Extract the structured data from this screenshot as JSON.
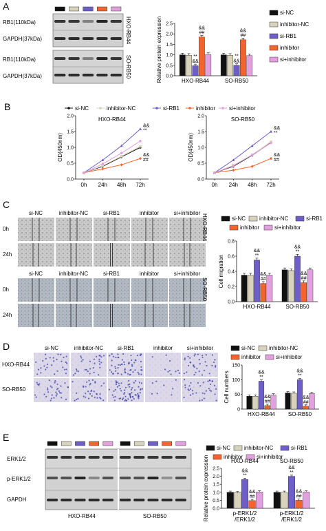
{
  "colors": {
    "si-NC": "#111111",
    "inhibitor-NC": "#d8d3bb",
    "si-RB1": "#6e5fc8",
    "inhibitor": "#f2642e",
    "si+inhibitor": "#e3a0de"
  },
  "groups": [
    "si-NC",
    "inhibitor-NC",
    "si-RB1",
    "inhibitor",
    "si+inhibitor"
  ],
  "cell_lines": [
    "HXO-RB44",
    "SO-RB50"
  ],
  "panelA": {
    "letter": "A",
    "blots_top": {
      "cell": "HXO-RB44",
      "rows": [
        "RB1(110kDa)",
        "GAPDH(37kDa)"
      ]
    },
    "blots_bottom": {
      "cell": "SO-RB50",
      "rows": [
        "RB1(110kDa)",
        "GAPDH(37kDa)"
      ]
    }
  },
  "panelB": {
    "letter": "B"
  },
  "panelC": {
    "letter": "C",
    "timepoints": [
      "0h",
      "24h"
    ],
    "block_labels": [
      "HXO-RB44",
      "SO-RB50"
    ]
  },
  "panelD": {
    "letter": "D",
    "rows": [
      "HXO-RB44",
      "SO-RB50"
    ]
  },
  "panelE": {
    "letter": "E",
    "rows": [
      "ERK1/2",
      "p-ERK1/2",
      "GAPDH"
    ],
    "cells": [
      "HXO-RB44",
      "SO-RB50"
    ]
  },
  "legend_text": {
    "si_nc": "si-NC",
    "inhibitor_nc": "inhibitor-NC",
    "si_rb1": "si-RB1",
    "inhibitor": "inhibitor",
    "si_inhibitor": "si+inhibitor"
  },
  "chart_data": [
    {
      "id": "A-bar",
      "type": "bar",
      "ylabel": "Relative protein expression",
      "ylim": [
        0,
        2.5
      ],
      "yticks": [
        "0.0",
        "0.5",
        "1.0",
        "1.5",
        "2.0",
        "2.5"
      ],
      "categories": [
        "HXO-RB44",
        "SO-RB50"
      ],
      "series": [
        {
          "name": "si-NC",
          "values": [
            1.0,
            1.0
          ]
        },
        {
          "name": "inhibitor-NC",
          "values": [
            0.98,
            0.98
          ]
        },
        {
          "name": "si-RB1",
          "values": [
            0.48,
            0.5
          ]
        },
        {
          "name": "inhibitor",
          "values": [
            1.85,
            1.72
          ]
        },
        {
          "name": "si+inhibitor",
          "values": [
            1.02,
            0.96
          ]
        }
      ],
      "annotations": {
        "si-RB1": "**&&",
        "inhibitor": "&&##"
      }
    },
    {
      "id": "B-HXO",
      "type": "line",
      "title": "HXO-RB44",
      "ylabel": "OD(450nm)",
      "ylim": [
        0,
        2.0
      ],
      "yticks": [
        "0.0",
        "0.5",
        "1.0",
        "1.5",
        "2.0"
      ],
      "x": [
        "0h",
        "24h",
        "48h",
        "72h"
      ],
      "series": [
        {
          "name": "si-NC",
          "values": [
            0.2,
            0.4,
            0.7,
            1.0
          ]
        },
        {
          "name": "inhibitor-NC",
          "values": [
            0.2,
            0.42,
            0.72,
            1.03
          ]
        },
        {
          "name": "si-RB1",
          "values": [
            0.2,
            0.6,
            1.05,
            1.58
          ]
        },
        {
          "name": "inhibitor",
          "values": [
            0.2,
            0.32,
            0.45,
            0.65
          ]
        },
        {
          "name": "si+inhibitor",
          "values": [
            0.2,
            0.48,
            0.82,
            1.2
          ]
        }
      ],
      "annotations": {
        "si-RB1": "&&**",
        "inhibitor": "&&##"
      }
    },
    {
      "id": "B-SO",
      "type": "line",
      "title": "SO-RB50",
      "ylabel": "OD(450nm)",
      "ylim": [
        0,
        2.0
      ],
      "yticks": [
        "0.0",
        "0.5",
        "1.0",
        "1.5",
        "2.0"
      ],
      "x": [
        "0h",
        "24h",
        "48h",
        "72h"
      ],
      "series": [
        {
          "name": "si-NC",
          "values": [
            0.2,
            0.4,
            0.75,
            1.15
          ]
        },
        {
          "name": "inhibitor-NC",
          "values": [
            0.2,
            0.42,
            0.77,
            1.18
          ]
        },
        {
          "name": "si-RB1",
          "values": [
            0.2,
            0.6,
            1.05,
            1.5
          ]
        },
        {
          "name": "inhibitor",
          "values": [
            0.2,
            0.28,
            0.4,
            0.65
          ]
        },
        {
          "name": "si+inhibitor",
          "values": [
            0.2,
            0.43,
            0.76,
            1.14
          ]
        }
      ],
      "annotations": {
        "si-RB1": "&&**",
        "inhibitor": "&&##"
      }
    },
    {
      "id": "C-bar",
      "type": "bar",
      "ylabel": "Cell migration",
      "ylim": [
        0,
        0.8
      ],
      "yticks": [
        "0.0",
        "0.2",
        "0.4",
        "0.6",
        "0.8"
      ],
      "categories": [
        "HXO-RB44",
        "SO-RB50"
      ],
      "series": [
        {
          "name": "si-NC",
          "values": [
            0.35,
            0.42
          ]
        },
        {
          "name": "inhibitor-NC",
          "values": [
            0.35,
            0.41
          ]
        },
        {
          "name": "si-RB1",
          "values": [
            0.55,
            0.6
          ]
        },
        {
          "name": "inhibitor",
          "values": [
            0.24,
            0.25
          ]
        },
        {
          "name": "si+inhibitor",
          "values": [
            0.35,
            0.42
          ]
        }
      ],
      "annotations": {
        "si-RB1": "&&**",
        "inhibitor": "&&##"
      }
    },
    {
      "id": "D-bar",
      "type": "bar",
      "ylabel": "Cell numbers",
      "ylim": [
        0,
        150
      ],
      "yticks": [
        "0",
        "50",
        "100",
        "150"
      ],
      "categories": [
        "HXO-RB44",
        "SO-RB50"
      ],
      "series": [
        {
          "name": "si-NC",
          "values": [
            44,
            55
          ]
        },
        {
          "name": "inhibitor-NC",
          "values": [
            44,
            54
          ]
        },
        {
          "name": "si-RB1",
          "values": [
            95,
            100
          ]
        },
        {
          "name": "inhibitor",
          "values": [
            12,
            10
          ]
        },
        {
          "name": "si+inhibitor",
          "values": [
            48,
            53
          ]
        }
      ],
      "annotations": {
        "si-RB1": "&&**",
        "inhibitor": "&&##"
      }
    },
    {
      "id": "E-bar",
      "type": "bar",
      "ylabel": "Relative protein expression",
      "ylim": [
        0,
        2.5
      ],
      "yticks": [
        "0.0",
        "0.5",
        "1.0",
        "1.5",
        "2.0",
        "2.5"
      ],
      "categories": [
        "p-ERK1/2 /ERK1/2",
        "p-ERK1/2 /ERK1/2"
      ],
      "category_titles": [
        "HXO-RB44",
        "SO-RB50"
      ],
      "series": [
        {
          "name": "si-NC",
          "values": [
            1.0,
            1.0
          ]
        },
        {
          "name": "inhibitor-NC",
          "values": [
            0.98,
            1.0
          ]
        },
        {
          "name": "si-RB1",
          "values": [
            1.8,
            2.0
          ]
        },
        {
          "name": "inhibitor",
          "values": [
            0.48,
            0.5
          ]
        },
        {
          "name": "si+inhibitor",
          "values": [
            1.02,
            1.02
          ]
        }
      ],
      "annotations": {
        "si-RB1": "&&**",
        "inhibitor": "&&##"
      }
    }
  ]
}
